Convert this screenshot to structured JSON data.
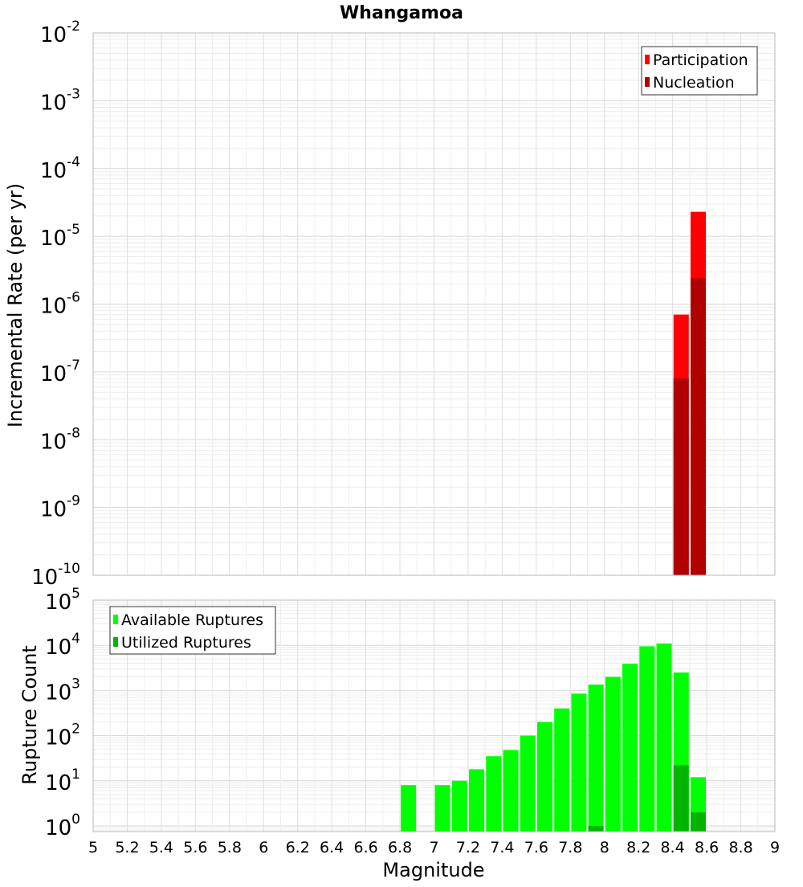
{
  "chart_data": [
    {
      "type": "bar",
      "title": "Whangamoa",
      "ylabel": "Incremental Rate (per yr)",
      "y_scale": "log",
      "ylim": [
        1e-10,
        0.01
      ],
      "xlim": [
        5,
        9
      ],
      "y_ticks": [
        {
          "base": "10",
          "exp": "-10",
          "value": 1e-10
        },
        {
          "base": "10",
          "exp": "-9",
          "value": 1e-09
        },
        {
          "base": "10",
          "exp": "-8",
          "value": 1e-08
        },
        {
          "base": "10",
          "exp": "-7",
          "value": 1e-07
        },
        {
          "base": "10",
          "exp": "-6",
          "value": 1e-06
        },
        {
          "base": "10",
          "exp": "-5",
          "value": 1e-05
        },
        {
          "base": "10",
          "exp": "-4",
          "value": 0.0001
        },
        {
          "base": "10",
          "exp": "-3",
          "value": 0.001
        },
        {
          "base": "10",
          "exp": "-2",
          "value": 0.01
        }
      ],
      "grid": true,
      "legend_position": "top-right",
      "series": [
        {
          "name": "Participation",
          "color": "#ff0000",
          "x": [
            8.45,
            8.55
          ],
          "values": [
            7e-07,
            2.3e-05
          ]
        },
        {
          "name": "Nucleation",
          "color": "#b00000",
          "x": [
            8.45,
            8.55
          ],
          "values": [
            8e-08,
            2.4e-06
          ]
        }
      ]
    },
    {
      "type": "bar",
      "xlabel": "Magnitude",
      "ylabel": "Rupture Count",
      "y_scale": "log",
      "ylim": [
        0.75,
        100000
      ],
      "xlim": [
        5,
        9
      ],
      "x_tick_labels": [
        "5",
        "5.2",
        "5.4",
        "5.6",
        "5.8",
        "6",
        "6.2",
        "6.4",
        "6.6",
        "6.8",
        "7",
        "7.2",
        "7.4",
        "7.6",
        "7.8",
        "8",
        "8.2",
        "8.4",
        "8.6",
        "8.8",
        "9"
      ],
      "x_tick_values": [
        5,
        5.2,
        5.4,
        5.6,
        5.8,
        6,
        6.2,
        6.4,
        6.6,
        6.8,
        7,
        7.2,
        7.4,
        7.6,
        7.8,
        8,
        8.2,
        8.4,
        8.6,
        8.8,
        9
      ],
      "y_ticks": [
        {
          "base": "10",
          "exp": "0",
          "value": 1
        },
        {
          "base": "10",
          "exp": "1",
          "value": 10
        },
        {
          "base": "10",
          "exp": "2",
          "value": 100
        },
        {
          "base": "10",
          "exp": "3",
          "value": 1000
        },
        {
          "base": "10",
          "exp": "4",
          "value": 10000
        },
        {
          "base": "10",
          "exp": "5",
          "value": 100000
        }
      ],
      "grid": true,
      "legend_position": "top-left",
      "series": [
        {
          "name": "Available Ruptures",
          "color": "#00ff00",
          "x": [
            6.85,
            7.05,
            7.15,
            7.25,
            7.35,
            7.45,
            7.55,
            7.65,
            7.75,
            7.85,
            7.95,
            8.05,
            8.15,
            8.25,
            8.35,
            8.45,
            8.55
          ],
          "values": [
            8,
            8,
            10,
            18,
            35,
            48,
            100,
            200,
            400,
            850,
            1350,
            2000,
            3900,
            9500,
            11000,
            2500,
            12
          ]
        },
        {
          "name": "Utilized Ruptures",
          "color": "#00b400",
          "x": [
            7.95,
            8.45,
            8.55
          ],
          "values": [
            1,
            22,
            2
          ]
        }
      ]
    }
  ]
}
